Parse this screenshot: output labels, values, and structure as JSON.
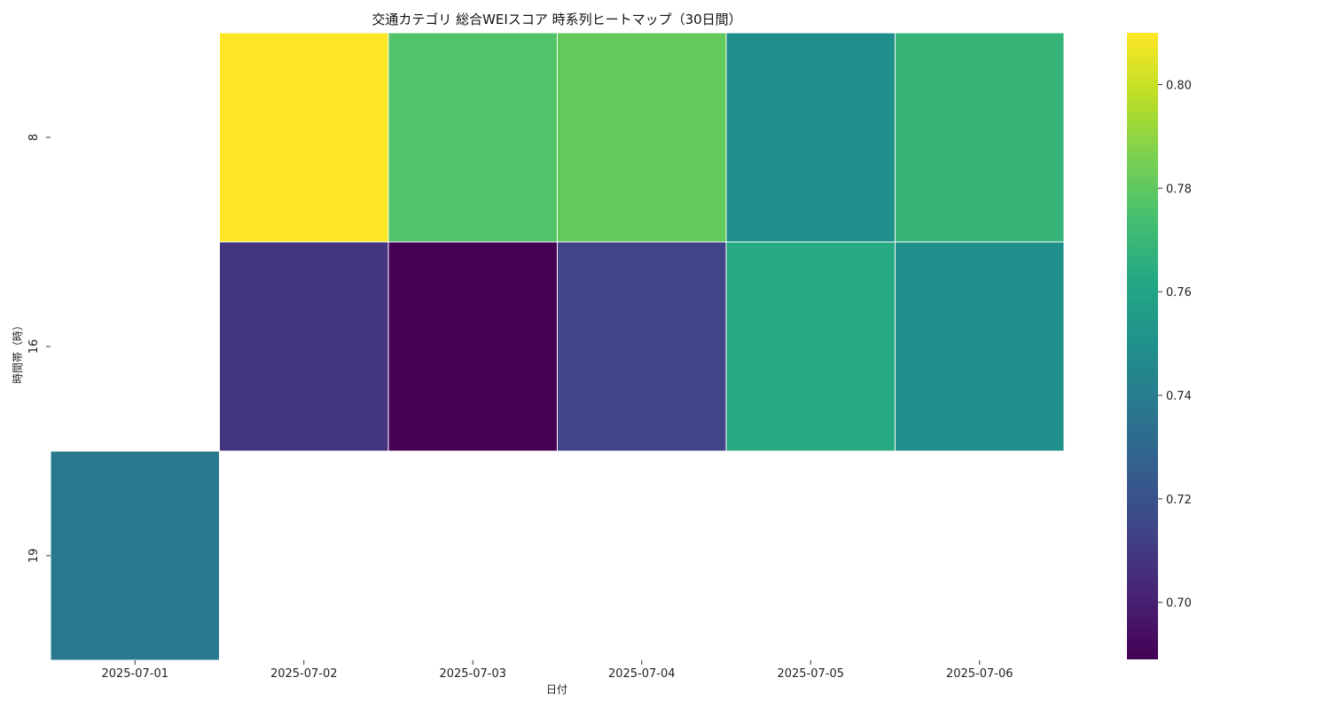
{
  "chart_data": {
    "type": "heatmap",
    "title": "交通カテゴリ 総合WEIスコア 時系列ヒートマップ（30日間）",
    "xlabel": "日付",
    "ylabel": "時間帯（時）",
    "x": [
      "2025-07-01",
      "2025-07-02",
      "2025-07-03",
      "2025-07-04",
      "2025-07-05",
      "2025-07-06"
    ],
    "y": [
      "8",
      "16",
      "19"
    ],
    "values": [
      [
        null,
        0.81,
        0.777,
        0.781,
        0.749,
        0.769
      ],
      [
        null,
        0.708,
        0.689,
        0.714,
        0.763,
        0.749
      ],
      [
        0.738,
        null,
        null,
        null,
        null,
        null
      ]
    ],
    "colorscale": "viridis",
    "color_range": [
      0.689,
      0.81
    ],
    "colorbar_ticks": [
      "0.70",
      "0.72",
      "0.74",
      "0.76",
      "0.78",
      "0.80"
    ],
    "grid": false,
    "legend": "colorbar-right"
  }
}
